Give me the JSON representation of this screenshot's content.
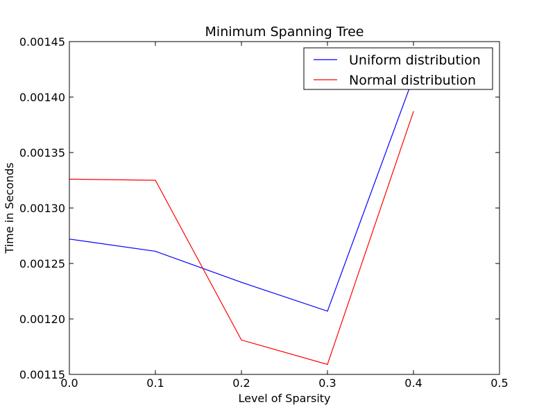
{
  "chart_data": {
    "type": "line",
    "title": "Minimum Spanning Tree",
    "xlabel": "Level of Sparsity",
    "ylabel": "Time in Seconds",
    "xlim": [
      0.0,
      0.5
    ],
    "ylim": [
      0.00115,
      0.00145
    ],
    "x_ticks": [
      0.0,
      0.1,
      0.2,
      0.3,
      0.4,
      0.5
    ],
    "x_tick_labels": [
      "0.0",
      "0.1",
      "0.2",
      "0.3",
      "0.4",
      "0.5"
    ],
    "y_ticks": [
      0.00115,
      0.0012,
      0.00125,
      0.0013,
      0.00135,
      0.0014,
      0.00145
    ],
    "y_tick_labels": [
      "0.00115",
      "0.00120",
      "0.00125",
      "0.00130",
      "0.00135",
      "0.00140",
      "0.00145"
    ],
    "grid": false,
    "legend_position": "top-right",
    "x": [
      0.0,
      0.1,
      0.2,
      0.3,
      0.4
    ],
    "series": [
      {
        "name": "Uniform distribution",
        "color": "#0000ff",
        "values": [
          0.001272,
          0.001261,
          0.001233,
          0.001207,
          0.001418
        ]
      },
      {
        "name": "Normal distribution",
        "color": "#ff0000",
        "values": [
          0.001326,
          0.001325,
          0.001181,
          0.001159,
          0.001387
        ]
      }
    ]
  }
}
